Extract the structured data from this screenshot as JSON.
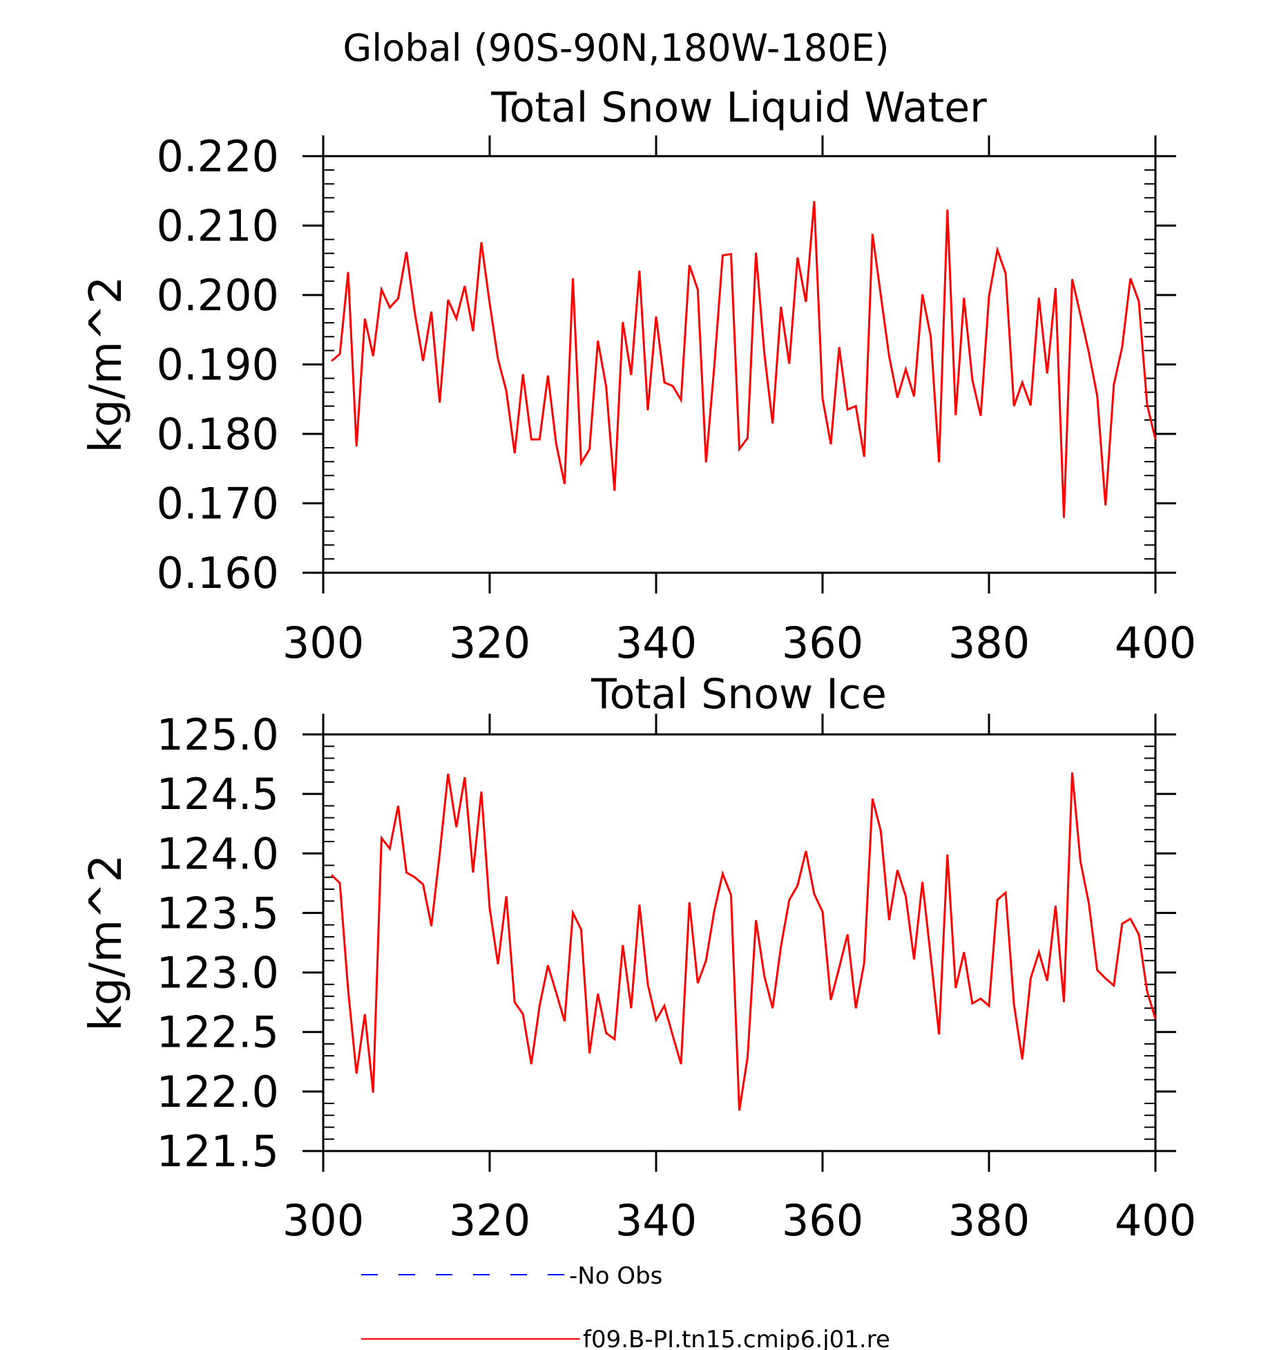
{
  "figure": {
    "supertitle": "Global (90S-90N,180W-180E)"
  },
  "legend": [
    {
      "label": "-No Obs",
      "color": "#0000ff",
      "style": "dashed"
    },
    {
      "label": "f09.B-PI.tn15.cmip6.j01.re",
      "color": "#ff0000",
      "style": "solid"
    }
  ],
  "chart_data": [
    {
      "type": "line",
      "title": "Total Snow Liquid Water",
      "xlabel": "",
      "ylabel": "kg/m^2",
      "xlim": [
        300,
        400
      ],
      "ylim": [
        0.16,
        0.22
      ],
      "xticks": [
        300,
        320,
        340,
        360,
        380,
        400
      ],
      "xtick_labels": [
        "300",
        "320",
        "340",
        "360",
        "380",
        "400"
      ],
      "yticks": [
        0.16,
        0.17,
        0.18,
        0.19,
        0.2,
        0.21,
        0.22
      ],
      "ytick_labels": [
        "0.160",
        "0.170",
        "0.180",
        "0.190",
        "0.200",
        "0.210",
        "0.220"
      ],
      "grid": false,
      "series": [
        {
          "name": "f09.B-PI.tn15.cmip6.j01.re",
          "color": "#ff0000",
          "x_start": 301,
          "x_step": 1,
          "values": [
            0.1905,
            0.1915,
            0.2033,
            0.1782,
            0.1966,
            0.1912,
            0.2008,
            0.1982,
            0.1995,
            0.2062,
            0.1975,
            0.1905,
            0.1976,
            0.1845,
            0.1993,
            0.1966,
            0.2013,
            0.1948,
            0.2076,
            0.1988,
            0.1908,
            0.1862,
            0.1772,
            0.1886,
            0.1792,
            0.1792,
            0.1884,
            0.1785,
            0.1728,
            0.2024,
            0.1758,
            0.1778,
            0.1934,
            0.1868,
            0.1718,
            0.1961,
            0.1885,
            0.2035,
            0.1834,
            0.1969,
            0.1874,
            0.1869,
            0.1849,
            0.2043,
            0.2008,
            0.1759,
            0.1898,
            0.2057,
            0.2059,
            0.1778,
            0.1794,
            0.2061,
            0.1916,
            0.1815,
            0.1983,
            0.1901,
            0.2054,
            0.199,
            0.2135,
            0.1851,
            0.1785,
            0.1925,
            0.1835,
            0.184,
            0.1767,
            0.2088,
            0.2,
            0.1912,
            0.1852,
            0.1893,
            0.1854,
            0.2001,
            0.194,
            0.1759,
            0.2123,
            0.1827,
            0.1996,
            0.1878,
            0.1826,
            0.1998,
            0.2065,
            0.2031,
            0.184,
            0.1874,
            0.1841,
            0.1996,
            0.1887,
            0.201,
            0.1679,
            0.2023,
            0.1971,
            0.1917,
            0.1855,
            0.1697,
            0.1871,
            0.1925,
            0.2024,
            0.1991,
            0.1842,
            0.1792
          ]
        }
      ]
    },
    {
      "type": "line",
      "title": "Total Snow Ice",
      "xlabel": "",
      "ylabel": "kg/m^2",
      "xlim": [
        300,
        400
      ],
      "ylim": [
        121.5,
        125.0
      ],
      "xticks": [
        300,
        320,
        340,
        360,
        380,
        400
      ],
      "xtick_labels": [
        "300",
        "320",
        "340",
        "360",
        "380",
        "400"
      ],
      "yticks": [
        121.5,
        122.0,
        122.5,
        123.0,
        123.5,
        124.0,
        124.5,
        125.0
      ],
      "ytick_labels": [
        "121.5",
        "122.0",
        "122.5",
        "123.0",
        "123.5",
        "124.0",
        "124.5",
        "125.0"
      ],
      "grid": false,
      "series": [
        {
          "name": "f09.B-PI.tn15.cmip6.j01.re",
          "color": "#ff0000",
          "x_start": 301,
          "x_step": 1,
          "values": [
            123.82,
            123.75,
            122.85,
            122.15,
            122.65,
            121.99,
            124.13,
            124.04,
            124.4,
            123.84,
            123.8,
            123.74,
            123.39,
            124.0,
            124.67,
            124.22,
            124.64,
            123.84,
            124.52,
            123.54,
            123.07,
            123.64,
            122.75,
            122.65,
            122.23,
            122.72,
            123.06,
            122.83,
            122.59,
            123.5,
            123.36,
            122.32,
            122.82,
            122.49,
            122.44,
            123.23,
            122.7,
            123.57,
            122.9,
            122.6,
            122.72,
            122.47,
            122.23,
            123.59,
            122.91,
            123.1,
            123.52,
            123.83,
            123.65,
            121.84,
            122.29,
            123.44,
            122.97,
            122.7,
            123.22,
            123.61,
            123.73,
            124.02,
            123.66,
            123.51,
            122.77,
            123.04,
            123.32,
            122.7,
            123.08,
            124.46,
            124.19,
            123.44,
            123.86,
            123.64,
            123.11,
            123.76,
            123.13,
            122.48,
            123.99,
            122.87,
            123.17,
            122.74,
            122.78,
            122.72,
            123.61,
            123.67,
            122.73,
            122.27,
            122.95,
            123.17,
            122.93,
            123.56,
            122.75,
            124.68,
            123.93,
            123.58,
            123.02,
            122.95,
            122.89,
            123.41,
            123.45,
            123.32,
            122.84,
            122.61
          ]
        }
      ]
    }
  ]
}
